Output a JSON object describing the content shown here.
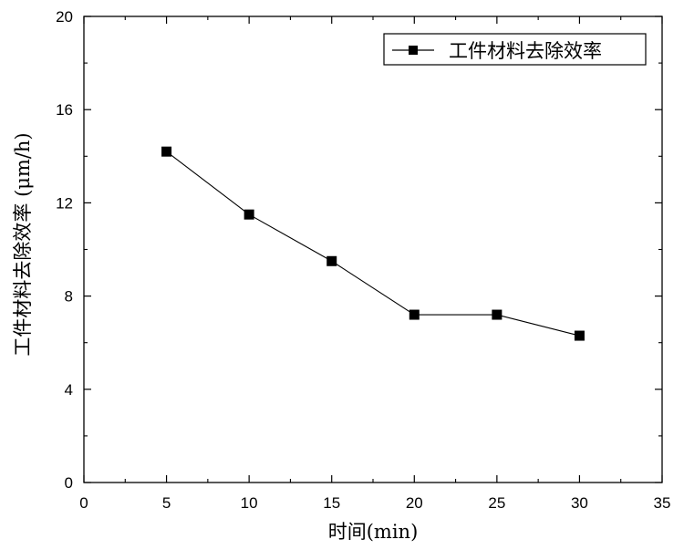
{
  "chart_data": {
    "type": "line",
    "title": "",
    "xlabel": "时间(min)",
    "ylabel": "工件材料去除效率 (μm/h)",
    "xlim": [
      0,
      35
    ],
    "ylim": [
      0,
      20
    ],
    "x_ticks": [
      0,
      5,
      10,
      15,
      20,
      25,
      30,
      35
    ],
    "y_ticks": [
      0,
      4,
      8,
      12,
      16,
      20
    ],
    "x_tick_labels": [
      "0",
      "5",
      "10",
      "15",
      "20",
      "25",
      "30",
      "35"
    ],
    "y_tick_labels": [
      "0",
      "4",
      "8",
      "12",
      "16",
      "20"
    ],
    "grid": false,
    "legend_position": "top-right",
    "series": [
      {
        "name": "工件材料去除效率",
        "marker": "square",
        "color": "#000000",
        "x": [
          5,
          10,
          15,
          20,
          25,
          30
        ],
        "y": [
          14.2,
          11.5,
          9.5,
          7.2,
          7.2,
          6.3
        ]
      }
    ]
  }
}
